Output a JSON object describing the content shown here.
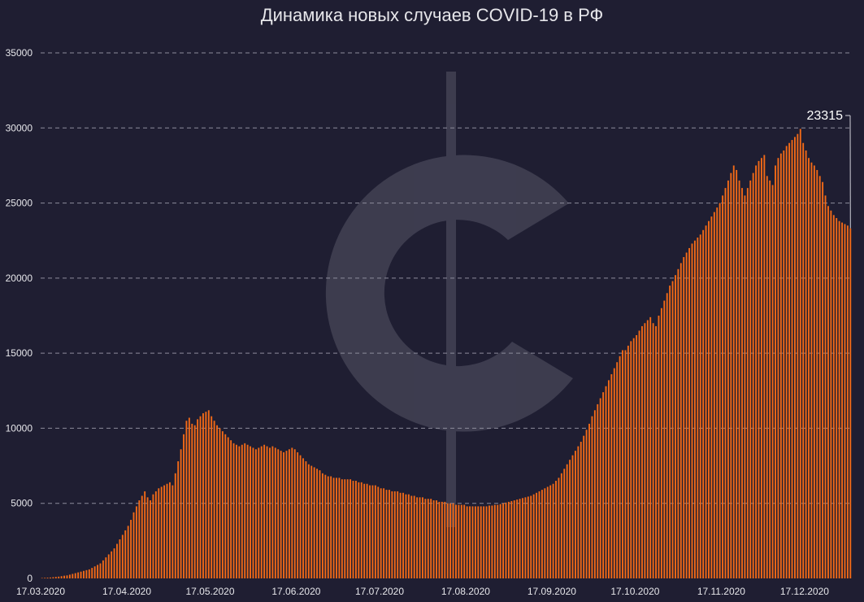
{
  "chart_data": {
    "type": "bar",
    "title": "Динамика новых случаев COVID-19 в РФ",
    "xlabel": "",
    "ylabel": "",
    "ylim": [
      0,
      35000
    ],
    "yticks": [
      0,
      5000,
      10000,
      15000,
      20000,
      25000,
      30000,
      35000
    ],
    "xtick_labels": [
      "17.03.2020",
      "17.04.2020",
      "17.05.2020",
      "17.06.2020",
      "17.07.2020",
      "17.08.2020",
      "17.09.2020",
      "17.10.2020",
      "17.11.2020",
      "17.12.2020"
    ],
    "grid": "horizontal dashed",
    "bar_color": "#f36a17",
    "background": "#1f1e32",
    "start_date": "17.03.2020",
    "values": [
      30,
      40,
      50,
      60,
      80,
      100,
      120,
      150,
      180,
      200,
      250,
      300,
      350,
      400,
      450,
      500,
      550,
      600,
      700,
      800,
      900,
      1000,
      1200,
      1400,
      1600,
      1800,
      2000,
      2300,
      2600,
      2900,
      3200,
      3500,
      3900,
      4400,
      4800,
      5200,
      5500,
      5800,
      5400,
      5200,
      5600,
      5800,
      6000,
      6100,
      6200,
      6300,
      6400,
      6200,
      7000,
      7800,
      8600,
      9600,
      10500,
      10700,
      10300,
      10200,
      10600,
      10800,
      11000,
      11100,
      11200,
      10800,
      10500,
      10200,
      10000,
      9800,
      9600,
      9400,
      9200,
      9000,
      8900,
      8800,
      8900,
      9000,
      8900,
      8800,
      8700,
      8600,
      8700,
      8800,
      8900,
      8800,
      8700,
      8800,
      8700,
      8600,
      8500,
      8400,
      8500,
      8600,
      8700,
      8600,
      8400,
      8200,
      8000,
      7800,
      7600,
      7500,
      7400,
      7300,
      7200,
      7000,
      6900,
      6800,
      6800,
      6700,
      6700,
      6700,
      6600,
      6600,
      6600,
      6600,
      6500,
      6500,
      6400,
      6400,
      6300,
      6300,
      6200,
      6200,
      6200,
      6100,
      6000,
      6000,
      5900,
      5900,
      5800,
      5800,
      5800,
      5700,
      5700,
      5600,
      5600,
      5500,
      5500,
      5400,
      5400,
      5400,
      5300,
      5300,
      5300,
      5200,
      5200,
      5100,
      5100,
      5100,
      5000,
      5000,
      5000,
      4900,
      4900,
      4900,
      4900,
      4800,
      4800,
      4800,
      4800,
      4800,
      4800,
      4800,
      4800,
      4850,
      4850,
      4900,
      4900,
      4950,
      5000,
      5050,
      5100,
      5150,
      5200,
      5250,
      5300,
      5350,
      5400,
      5450,
      5500,
      5600,
      5700,
      5800,
      5900,
      6000,
      6100,
      6200,
      6300,
      6500,
      6700,
      7000,
      7300,
      7600,
      7900,
      8200,
      8500,
      8800,
      9100,
      9500,
      9900,
      10300,
      10800,
      11200,
      11600,
      12000,
      12400,
      12800,
      13200,
      13600,
      14000,
      14400,
      14800,
      15200,
      15200,
      15500,
      15800,
      16000,
      16200,
      16500,
      16800,
      17000,
      17200,
      17400,
      17000,
      16800,
      17500,
      18000,
      18500,
      19000,
      19500,
      19800,
      20200,
      20600,
      21000,
      21400,
      21700,
      22000,
      22300,
      22500,
      22700,
      22900,
      23200,
      23500,
      23800,
      24100,
      24400,
      24700,
      25000,
      25500,
      26000,
      26500,
      27000,
      27500,
      27200,
      26500,
      26000,
      25500,
      26000,
      26500,
      27000,
      27500,
      27800,
      28000,
      28200,
      26800,
      26500,
      26200,
      27500,
      28000,
      28300,
      28500,
      28800,
      29000,
      29200,
      29400,
      29600,
      29935,
      29000,
      28500,
      28000,
      27700,
      27500,
      27200,
      26800,
      26400,
      25500,
      24800,
      24500,
      24200,
      24000,
      23800,
      23700,
      23600,
      23500,
      23315
    ],
    "annotation": {
      "text": "23315",
      "value": 23315
    }
  }
}
